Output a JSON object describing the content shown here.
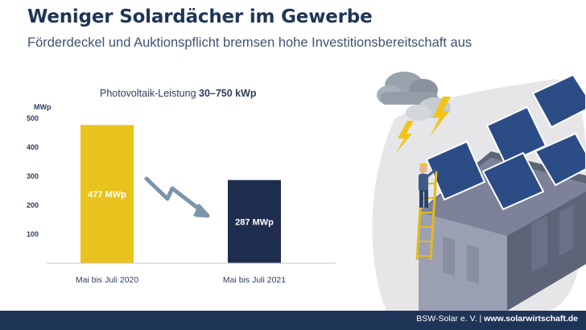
{
  "header": {
    "title": "Weniger Solardächer im Gewerbe",
    "subtitle": "Förderdeckel und Auktionspflicht bremsen hohe Investitionsbereitschaft aus"
  },
  "chart_data": {
    "type": "bar",
    "title_prefix": "Photovoltaik-Leistung ",
    "title_emphasis": "30–750 kWp",
    "ylabel": "MWp",
    "ylim": [
      0,
      500
    ],
    "yticks": [
      100,
      200,
      300,
      400,
      500
    ],
    "categories": [
      "Mai bis Juli 2020",
      "Mai bis Juli 2021"
    ],
    "values": [
      477,
      287
    ],
    "data_labels": [
      "477 MWp",
      "287 MWp"
    ],
    "colors": [
      "#e8c31d",
      "#1f2d4e"
    ],
    "grid": false,
    "annotation": "down-trend-arrow"
  },
  "footer": {
    "org": "BSW-Solar e. V.",
    "separator": " | ",
    "url": "www.solarwirtschaft.de"
  },
  "illustration": {
    "icons": [
      "cloud-icon",
      "lightning-icon",
      "worker-icon",
      "ladder-icon",
      "solar-panel-icon",
      "building-icon"
    ]
  }
}
